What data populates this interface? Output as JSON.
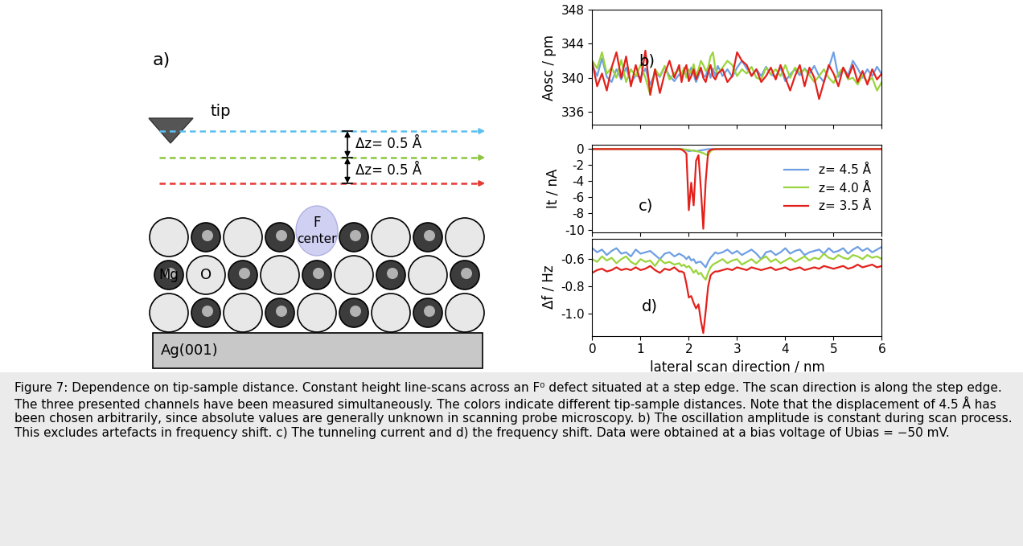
{
  "diagram": {
    "label": "a)",
    "tip": "tip",
    "dz_labels": [
      "Δz= 0.5 Å",
      "Δz= 0.5 Å"
    ],
    "defect": [
      "F",
      "center"
    ],
    "ions": [
      "Mg",
      "O"
    ],
    "substrate": "Ag(001)"
  },
  "chart_data": [
    {
      "type": "line",
      "panel_label": "b)",
      "y_label": "Aosc / pm",
      "x": [
        0.0,
        0.1,
        0.2,
        0.3,
        0.4,
        0.5,
        0.6,
        0.7,
        0.8,
        0.9,
        1.0,
        1.1,
        1.2,
        1.3,
        1.4,
        1.5,
        1.6,
        1.7,
        1.8,
        1.85,
        1.9,
        1.95,
        2.0,
        2.05,
        2.1,
        2.15,
        2.2,
        2.25,
        2.3,
        2.35,
        2.4,
        2.45,
        2.5,
        2.55,
        2.6,
        2.7,
        2.8,
        2.9,
        3.0,
        3.1,
        3.2,
        3.3,
        3.4,
        3.5,
        3.6,
        3.7,
        3.8,
        3.9,
        4.0,
        4.1,
        4.2,
        4.3,
        4.4,
        4.5,
        4.6,
        4.7,
        4.8,
        4.9,
        5.0,
        5.1,
        5.2,
        5.3,
        5.4,
        5.5,
        5.6,
        5.7,
        5.8,
        5.9,
        6.0
      ],
      "series": [
        {
          "color": "#6f9fe3",
          "values": [
            341.5,
            340.2,
            342.3,
            340.1,
            339.5,
            341.0,
            339.8,
            341.2,
            339.4,
            340.3,
            340.0,
            341.1,
            339.2,
            340.6,
            340.1,
            341.3,
            340.2,
            339.6,
            340.4,
            340.1,
            341.0,
            340.3,
            340.0,
            341.2,
            340.4,
            339.5,
            340.2,
            341.0,
            340.3,
            340.1,
            341.2,
            340.0,
            341.1,
            340.2,
            341.4,
            340.2,
            341.0,
            340.1,
            341.2,
            342.0,
            341.1,
            340.3,
            341.0,
            340.2,
            341.3,
            340.4,
            340.1,
            341.2,
            339.6,
            340.4,
            341.0,
            340.3,
            341.1,
            340.5,
            341.4,
            340.2,
            339.5,
            341.2,
            343.0,
            340.1,
            341.2,
            340.3,
            342.0,
            341.1,
            340.0,
            341.0,
            340.2,
            341.3,
            340.4
          ]
        },
        {
          "color": "#9ad43c",
          "values": [
            342.0,
            341.1,
            343.0,
            340.5,
            341.2,
            340.0,
            342.1,
            339.5,
            341.0,
            340.2,
            341.5,
            340.0,
            338.0,
            341.0,
            340.2,
            341.4,
            339.8,
            340.5,
            341.0,
            340.3,
            341.2,
            340.0,
            341.0,
            340.5,
            341.6,
            340.2,
            341.0,
            342.0,
            341.5,
            340.8,
            341.2,
            342.5,
            343.0,
            341.0,
            340.5,
            341.2,
            342.0,
            341.5,
            340.2,
            341.0,
            340.5,
            341.3,
            340.0,
            339.8,
            341.2,
            340.4,
            341.0,
            340.2,
            341.5,
            340.0,
            341.2,
            340.6,
            341.0,
            340.3,
            339.5,
            340.2,
            341.0,
            340.0,
            339.4,
            340.5,
            341.2,
            339.8,
            340.0,
            339.2,
            340.3,
            339.5,
            340.0,
            338.5,
            339.5
          ]
        },
        {
          "color": "#e3211c",
          "values": [
            341.8,
            339.0,
            340.5,
            338.5,
            341.2,
            343.0,
            340.0,
            342.5,
            339.0,
            341.5,
            339.5,
            343.2,
            338.0,
            341.0,
            338.2,
            340.5,
            342.0,
            340.0,
            341.5,
            339.5,
            340.8,
            341.5,
            339.6,
            340.2,
            341.0,
            339.8,
            340.5,
            341.2,
            340.0,
            339.5,
            340.6,
            341.5,
            340.2,
            339.8,
            340.5,
            341.0,
            339.5,
            340.2,
            343.0,
            342.0,
            341.5,
            340.2,
            341.0,
            339.5,
            340.2,
            341.2,
            339.8,
            341.5,
            340.0,
            338.5,
            340.2,
            341.5,
            339.0,
            341.2,
            340.0,
            337.5,
            339.5,
            341.5,
            340.5,
            339.0,
            341.2,
            340.0,
            341.5,
            339.5,
            340.8,
            339.2,
            341.0,
            339.8,
            340.5
          ]
        }
      ],
      "xlim": [
        0,
        6
      ],
      "xticks": [
        0,
        1,
        2,
        3,
        4,
        5,
        6
      ],
      "ylim": [
        334.5,
        348
      ],
      "yticks": [
        336,
        340,
        344,
        348
      ],
      "tick_labels": "y"
    },
    {
      "type": "line",
      "panel_label": "c)",
      "y_label": "It / nA",
      "legend": "center right",
      "x": [
        0.0,
        0.1,
        0.2,
        0.3,
        0.4,
        0.5,
        0.6,
        0.7,
        0.8,
        0.9,
        1.0,
        1.1,
        1.2,
        1.3,
        1.4,
        1.5,
        1.6,
        1.7,
        1.8,
        1.85,
        1.9,
        1.95,
        2.0,
        2.05,
        2.1,
        2.15,
        2.2,
        2.25,
        2.3,
        2.35,
        2.4,
        2.45,
        2.5,
        2.55,
        2.6,
        2.7,
        2.8,
        2.9,
        3.0,
        3.1,
        3.2,
        3.3,
        3.4,
        3.5,
        3.6,
        3.7,
        3.8,
        3.9,
        4.0,
        4.1,
        4.2,
        4.3,
        4.4,
        4.5,
        4.6,
        4.7,
        4.8,
        4.9,
        5.0,
        5.1,
        5.2,
        5.3,
        5.4,
        5.5,
        5.6,
        5.7,
        5.8,
        5.9,
        6.0
      ],
      "series": [
        {
          "name": "z= 4.5 Å",
          "color": "#6f9fe3",
          "values": [
            -0.02,
            -0.02,
            -0.02,
            -0.02,
            -0.02,
            -0.02,
            -0.02,
            -0.02,
            -0.02,
            -0.02,
            -0.02,
            -0.02,
            -0.02,
            -0.02,
            -0.02,
            -0.02,
            -0.02,
            -0.02,
            -0.02,
            -0.05,
            -0.1,
            -0.2,
            -0.3,
            -0.25,
            -0.2,
            -0.3,
            -0.25,
            -0.2,
            -0.15,
            -0.1,
            -0.05,
            -0.04,
            -0.03,
            -0.03,
            -0.02,
            -0.02,
            -0.02,
            -0.02,
            -0.02,
            -0.02,
            -0.02,
            -0.02,
            -0.02,
            -0.02,
            -0.02,
            -0.02,
            -0.02,
            -0.02,
            -0.02,
            -0.02,
            -0.02,
            -0.02,
            -0.02,
            -0.02,
            -0.02,
            -0.02,
            -0.02,
            -0.02,
            -0.02,
            -0.02,
            -0.02,
            -0.02,
            -0.02,
            -0.02,
            -0.02,
            -0.02,
            -0.02,
            -0.02,
            -0.02
          ]
        },
        {
          "name": "z= 4.0 Å",
          "color": "#9ad43c",
          "values": [
            -0.03,
            -0.03,
            -0.03,
            -0.03,
            -0.03,
            -0.03,
            -0.03,
            -0.03,
            -0.03,
            -0.03,
            -0.03,
            -0.03,
            -0.03,
            -0.03,
            -0.03,
            -0.03,
            -0.03,
            -0.03,
            -0.03,
            -0.05,
            -0.08,
            -0.1,
            -0.15,
            -0.2,
            -0.25,
            -0.3,
            -0.35,
            -0.45,
            -0.55,
            -0.7,
            -0.8,
            -0.3,
            -0.1,
            -0.05,
            -0.04,
            -0.03,
            -0.03,
            -0.03,
            -0.03,
            -0.03,
            -0.03,
            -0.03,
            -0.03,
            -0.03,
            -0.03,
            -0.03,
            -0.03,
            -0.03,
            -0.03,
            -0.03,
            -0.03,
            -0.03,
            -0.03,
            -0.03,
            -0.03,
            -0.03,
            -0.03,
            -0.03,
            -0.03,
            -0.03,
            -0.03,
            -0.03,
            -0.03,
            -0.03,
            -0.03,
            -0.03,
            -0.03,
            -0.03,
            -0.03
          ]
        },
        {
          "name": "z= 3.5 Å",
          "color": "#e3211c",
          "values": [
            -0.04,
            -0.04,
            -0.04,
            -0.04,
            -0.04,
            -0.04,
            -0.04,
            -0.04,
            -0.04,
            -0.04,
            -0.04,
            -0.04,
            -0.04,
            -0.04,
            -0.04,
            -0.04,
            -0.04,
            -0.04,
            -0.04,
            -0.1,
            -0.3,
            -0.6,
            -7.6,
            -4.2,
            -7.0,
            -1.5,
            -0.8,
            -5.0,
            -9.9,
            -4.0,
            -0.4,
            -0.15,
            -0.08,
            -0.06,
            -0.05,
            -0.04,
            -0.04,
            -0.04,
            -0.04,
            -0.04,
            -0.04,
            -0.04,
            -0.04,
            -0.04,
            -0.04,
            -0.04,
            -0.04,
            -0.04,
            -0.04,
            -0.04,
            -0.04,
            -0.04,
            -0.04,
            -0.04,
            -0.04,
            -0.04,
            -0.04,
            -0.04,
            -0.04,
            -0.04,
            -0.04,
            -0.04,
            -0.04,
            -0.04,
            -0.04,
            -0.04,
            -0.04,
            -0.04,
            -0.04
          ]
        }
      ],
      "xlim": [
        0,
        6
      ],
      "xticks": [
        0,
        1,
        2,
        3,
        4,
        5,
        6
      ],
      "ylim": [
        -10.3,
        0.5
      ],
      "yticks": [
        -10,
        -8,
        -6,
        -4,
        -2,
        0
      ],
      "tick_labels": "y"
    },
    {
      "type": "line",
      "panel_label": "d)",
      "y_label": "Δf / Hz",
      "x_label": "lateral scan direction / nm",
      "x": [
        0.0,
        0.1,
        0.2,
        0.3,
        0.4,
        0.5,
        0.6,
        0.7,
        0.8,
        0.9,
        1.0,
        1.1,
        1.2,
        1.3,
        1.4,
        1.5,
        1.6,
        1.7,
        1.8,
        1.85,
        1.9,
        1.95,
        2.0,
        2.05,
        2.1,
        2.15,
        2.2,
        2.25,
        2.3,
        2.35,
        2.4,
        2.45,
        2.5,
        2.55,
        2.6,
        2.7,
        2.8,
        2.9,
        3.0,
        3.1,
        3.2,
        3.3,
        3.4,
        3.5,
        3.6,
        3.7,
        3.8,
        3.9,
        4.0,
        4.1,
        4.2,
        4.3,
        4.4,
        4.5,
        4.6,
        4.7,
        4.8,
        4.9,
        5.0,
        5.1,
        5.2,
        5.3,
        5.4,
        5.5,
        5.6,
        5.7,
        5.8,
        5.9,
        6.0
      ],
      "series": [
        {
          "color": "#6f9fe3",
          "values": [
            -0.52,
            -0.55,
            -0.53,
            -0.57,
            -0.54,
            -0.52,
            -0.56,
            -0.55,
            -0.58,
            -0.53,
            -0.56,
            -0.55,
            -0.54,
            -0.57,
            -0.6,
            -0.56,
            -0.55,
            -0.58,
            -0.56,
            -0.57,
            -0.58,
            -0.6,
            -0.58,
            -0.61,
            -0.6,
            -0.63,
            -0.62,
            -0.62,
            -0.64,
            -0.66,
            -0.62,
            -0.59,
            -0.57,
            -0.55,
            -0.56,
            -0.55,
            -0.53,
            -0.56,
            -0.54,
            -0.57,
            -0.55,
            -0.53,
            -0.56,
            -0.6,
            -0.55,
            -0.54,
            -0.57,
            -0.55,
            -0.52,
            -0.56,
            -0.54,
            -0.53,
            -0.57,
            -0.55,
            -0.54,
            -0.53,
            -0.56,
            -0.52,
            -0.55,
            -0.54,
            -0.52,
            -0.56,
            -0.53,
            -0.51,
            -0.54,
            -0.52,
            -0.55,
            -0.53,
            -0.51
          ]
        },
        {
          "color": "#9ad43c",
          "values": [
            -0.6,
            -0.62,
            -0.58,
            -0.61,
            -0.59,
            -0.63,
            -0.6,
            -0.58,
            -0.62,
            -0.64,
            -0.6,
            -0.62,
            -0.61,
            -0.65,
            -0.6,
            -0.63,
            -0.62,
            -0.64,
            -0.63,
            -0.65,
            -0.64,
            -0.66,
            -0.65,
            -0.67,
            -0.7,
            -0.68,
            -0.71,
            -0.7,
            -0.73,
            -0.75,
            -0.7,
            -0.66,
            -0.64,
            -0.63,
            -0.62,
            -0.6,
            -0.63,
            -0.61,
            -0.6,
            -0.64,
            -0.62,
            -0.6,
            -0.63,
            -0.6,
            -0.58,
            -0.62,
            -0.6,
            -0.63,
            -0.61,
            -0.59,
            -0.62,
            -0.6,
            -0.58,
            -0.61,
            -0.59,
            -0.6,
            -0.56,
            -0.59,
            -0.6,
            -0.57,
            -0.59,
            -0.6,
            -0.57,
            -0.58,
            -0.6,
            -0.57,
            -0.59,
            -0.58,
            -0.6
          ]
        },
        {
          "color": "#e3211c",
          "values": [
            -0.7,
            -0.68,
            -0.67,
            -0.69,
            -0.68,
            -0.66,
            -0.68,
            -0.67,
            -0.68,
            -0.66,
            -0.68,
            -0.67,
            -0.65,
            -0.68,
            -0.7,
            -0.67,
            -0.68,
            -0.66,
            -0.69,
            -0.69,
            -0.7,
            -0.78,
            -0.88,
            -0.87,
            -0.92,
            -0.96,
            -0.93,
            -1.05,
            -1.14,
            -0.98,
            -0.8,
            -0.72,
            -0.7,
            -0.69,
            -0.69,
            -0.68,
            -0.67,
            -0.68,
            -0.66,
            -0.67,
            -0.68,
            -0.66,
            -0.67,
            -0.68,
            -0.67,
            -0.66,
            -0.68,
            -0.67,
            -0.66,
            -0.68,
            -0.67,
            -0.66,
            -0.68,
            -0.67,
            -0.66,
            -0.67,
            -0.65,
            -0.66,
            -0.67,
            -0.66,
            -0.65,
            -0.67,
            -0.66,
            -0.64,
            -0.66,
            -0.65,
            -0.64,
            -0.66,
            -0.65
          ]
        }
      ],
      "xlim": [
        0,
        6
      ],
      "xticks": [
        0,
        1,
        2,
        3,
        4,
        5,
        6
      ],
      "ylim": [
        -1.16,
        -0.45
      ],
      "yticks": [
        -1.0,
        -0.8,
        -0.6
      ]
    }
  ],
  "caption": "Figure 7: Dependence on tip-sample distance. Constant height line-scans across an F⁰ defect situated at a step edge. The scan direction is along the step edge. The three presented channels have been measured simultaneously. The colors indicate different tip-sample distances. Note that the displacement of 4.5 Å has been chosen arbitrarily, since absolute values are generally unknown in scanning probe microscopy. b) The oscillation amplitude is constant during scan process. This excludes artefacts in frequency shift. c) The tunneling current and d) the frequency shift. Data were obtained at a bias voltage of Ubias = −50 mV."
}
